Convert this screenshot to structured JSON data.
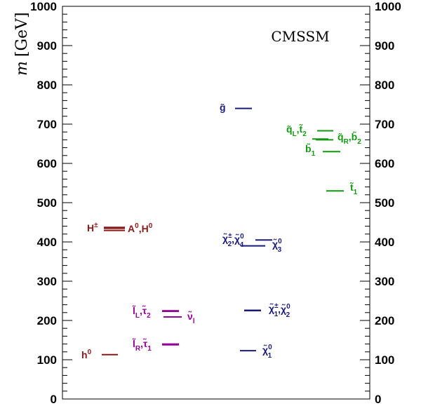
{
  "chart_data": {
    "type": "scatter",
    "title": "CMSSM",
    "ylabel": "m [GeV]",
    "ylabel_symbol": "m",
    "ylabel_unit": "[GeV]",
    "ylim": [
      0,
      1000
    ],
    "yticks": [
      0,
      100,
      200,
      300,
      400,
      500,
      600,
      700,
      800,
      900,
      1000
    ],
    "grid": false,
    "colors": {
      "higgs": "#8b1a1a",
      "slepton": "#990099",
      "gaugino": "#1a1a7a",
      "squark": "#119911"
    },
    "levels": [
      {
        "particle": "h0",
        "mass": 113,
        "color": "higgs"
      },
      {
        "particle": "H±",
        "mass": 437,
        "color": "higgs"
      },
      {
        "particle": "A0",
        "mass": 432,
        "color": "higgs"
      },
      {
        "particle": "H0",
        "mass": 432,
        "color": "higgs"
      },
      {
        "particle": "ẽR",
        "mass": 140,
        "color": "slepton"
      },
      {
        "particle": "τ̃1",
        "mass": 138,
        "color": "slepton"
      },
      {
        "particle": "ẽL",
        "mass": 225,
        "color": "slepton"
      },
      {
        "particle": "τ̃2",
        "mass": 223,
        "color": "slepton"
      },
      {
        "particle": "ν̃l",
        "mass": 209,
        "color": "slepton"
      },
      {
        "particle": "χ̃1_0",
        "mass": 123,
        "color": "gaugino"
      },
      {
        "particle": "χ̃1±",
        "mass": 226,
        "color": "gaugino"
      },
      {
        "particle": "χ̃2_0",
        "mass": 225,
        "color": "gaugino"
      },
      {
        "particle": "χ̃3_0",
        "mass": 390,
        "color": "gaugino"
      },
      {
        "particle": "χ̃2±",
        "mass": 405,
        "color": "gaugino"
      },
      {
        "particle": "χ̃4_0",
        "mass": 405,
        "color": "gaugino"
      },
      {
        "particle": "g̃",
        "mass": 740,
        "color": "gaugino"
      },
      {
        "particle": "q̃L",
        "mass": 683,
        "color": "squark"
      },
      {
        "particle": "t̃2",
        "mass": 662,
        "color": "squark"
      },
      {
        "particle": "q̃R",
        "mass": 662,
        "color": "squark"
      },
      {
        "particle": "b̃2",
        "mass": 660,
        "color": "squark"
      },
      {
        "particle": "b̃1",
        "mass": 630,
        "color": "squark"
      },
      {
        "particle": "t̃1",
        "mass": 530,
        "color": "squark"
      }
    ],
    "annotations": [
      {
        "name": "label-h0",
        "color": "higgs",
        "parts": [
          [
            "h",
            ""
          ],
          [
            "0",
            "sup"
          ]
        ]
      },
      {
        "name": "label-hpm",
        "color": "higgs",
        "parts": [
          [
            "H",
            ""
          ],
          [
            "±",
            "sup"
          ]
        ]
      },
      {
        "name": "label-a0-h0",
        "color": "higgs",
        "parts": [
          [
            "A",
            ""
          ],
          [
            "0",
            "sup"
          ],
          [
            ",H",
            ""
          ],
          [
            "0",
            "sup"
          ]
        ]
      },
      {
        "name": "label-lr-tau1",
        "color": "slepton",
        "parts": [
          [
            "l̃",
            ""
          ],
          [
            "R",
            "sub"
          ],
          [
            ",τ̃",
            ""
          ],
          [
            "1",
            "sub"
          ]
        ]
      },
      {
        "name": "label-ll-tau2",
        "color": "slepton",
        "parts": [
          [
            "l̃",
            ""
          ],
          [
            "L",
            "sub"
          ],
          [
            ",τ̃",
            ""
          ],
          [
            "2",
            "sub"
          ]
        ]
      },
      {
        "name": "label-nu-l",
        "color": "slepton",
        "parts": [
          [
            "ν̃",
            ""
          ],
          [
            "l",
            "sub"
          ]
        ]
      },
      {
        "name": "label-chi1-0",
        "color": "gaugino",
        "parts": [
          [
            "χ̃",
            ""
          ],
          [
            "0",
            "sup"
          ],
          [
            "1",
            "sub"
          ]
        ]
      },
      {
        "name": "label-chi1pm-chi2-0",
        "color": "gaugino",
        "parts": [
          [
            "χ̃",
            ""
          ],
          [
            "±",
            "sup"
          ],
          [
            "1",
            "sub"
          ],
          [
            ",χ̃",
            ""
          ],
          [
            "0",
            "sup"
          ],
          [
            "2",
            "sub"
          ]
        ]
      },
      {
        "name": "label-chi2pm-chi4-0",
        "color": "gaugino",
        "parts": [
          [
            "χ̃",
            ""
          ],
          [
            "±",
            "sup"
          ],
          [
            "2",
            "sub"
          ],
          [
            ",χ̃",
            ""
          ],
          [
            "0",
            "sup"
          ],
          [
            "4",
            "sub"
          ]
        ]
      },
      {
        "name": "label-chi3-0",
        "color": "gaugino",
        "parts": [
          [
            "χ̃",
            ""
          ],
          [
            "0",
            "sup"
          ],
          [
            "3",
            "sub"
          ]
        ]
      },
      {
        "name": "label-gluino",
        "color": "gaugino",
        "parts": [
          [
            "g̃",
            ""
          ]
        ]
      },
      {
        "name": "label-qL-t2",
        "color": "squark",
        "parts": [
          [
            "q̃",
            ""
          ],
          [
            "L",
            "sub"
          ],
          [
            ",t̃",
            ""
          ],
          [
            "2",
            "sub"
          ]
        ]
      },
      {
        "name": "label-qR-b2",
        "color": "squark",
        "parts": [
          [
            "q̃",
            ""
          ],
          [
            "R",
            "sub"
          ],
          [
            ",b̃",
            ""
          ],
          [
            "2",
            "sub"
          ]
        ]
      },
      {
        "name": "label-b1",
        "color": "squark",
        "parts": [
          [
            "b̃",
            ""
          ],
          [
            "1",
            "sub"
          ]
        ]
      },
      {
        "name": "label-t1",
        "color": "squark",
        "parts": [
          [
            "t̃",
            ""
          ],
          [
            "1",
            "sub"
          ]
        ]
      }
    ]
  }
}
